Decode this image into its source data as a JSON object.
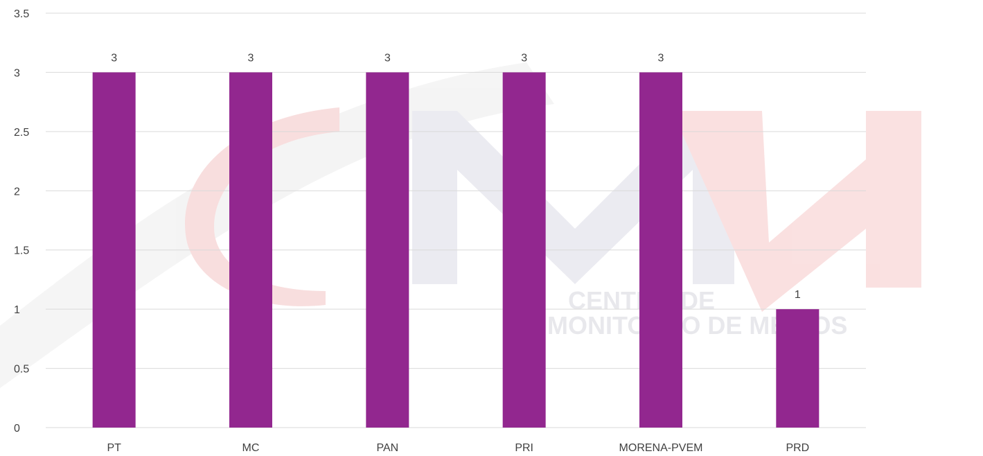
{
  "chart_data": {
    "type": "bar",
    "categories": [
      "PT",
      "MC",
      "PAN",
      "PRI",
      "MORENA-PVEM",
      "PRD"
    ],
    "values": [
      3,
      3,
      3,
      3,
      3,
      1
    ],
    "data_labels": [
      "3",
      "3",
      "3",
      "3",
      "3",
      "1"
    ],
    "yticks": [
      "0",
      "0.5",
      "1",
      "1.5",
      "2",
      "2.5",
      "3",
      "3.5"
    ],
    "ylim": [
      0,
      3.5
    ],
    "grid": true,
    "title": "",
    "xlabel": "",
    "ylabel": "",
    "colors": {
      "bar": "#92278F",
      "grid": "#d9d9d9",
      "text": "#404040"
    }
  },
  "watermark": {
    "line1": "CENTRO DE",
    "line2": "MONITOREO DE MEDIOS",
    "colors": {
      "gray": "#d6d6dd",
      "red": "#f4b5b5",
      "pale": "#ebebeb"
    }
  }
}
